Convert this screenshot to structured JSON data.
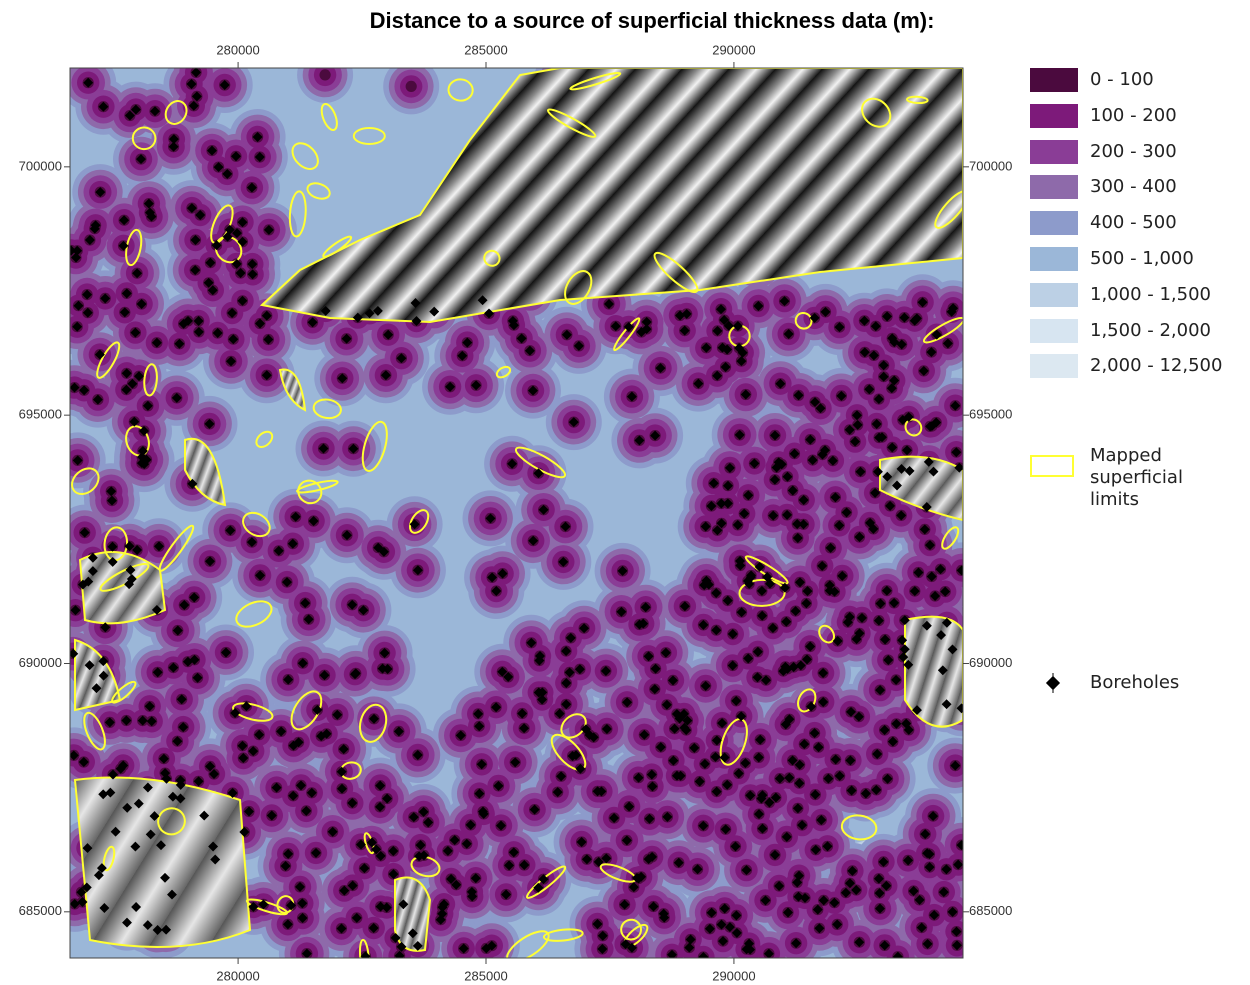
{
  "title": "Distance to a source of superficial thickness data (m):",
  "extent": {
    "xlim": [
      276610,
      294620
    ],
    "ylim": [
      684070,
      701990
    ]
  },
  "x_ticks": [
    280000,
    285000,
    290000
  ],
  "y_ticks": [
    685000,
    690000,
    695000,
    700000
  ],
  "legend": {
    "classes": [
      {
        "label": "0 - 100",
        "color": "#4b0a3e"
      },
      {
        "label": "100 - 200",
        "color": "#7d1a7a"
      },
      {
        "label": "200 - 300",
        "color": "#8a3d96"
      },
      {
        "label": "300 - 400",
        "color": "#8e6aaa"
      },
      {
        "label": "400 - 500",
        "color": "#8d9bcb"
      },
      {
        "label": "500 - 1,000",
        "color": "#9bb7d8"
      },
      {
        "label": "1,000 - 1,500",
        "color": "#bcd0e5"
      },
      {
        "label": "1,500 - 2,000",
        "color": "#d7e5f1"
      },
      {
        "label": "2,000 - 12,500",
        "color": "#dce8f1"
      }
    ],
    "limits": {
      "label": "Mapped superficial limits",
      "color": "#ffff33"
    },
    "boreholes": {
      "label": "Boreholes"
    }
  }
}
